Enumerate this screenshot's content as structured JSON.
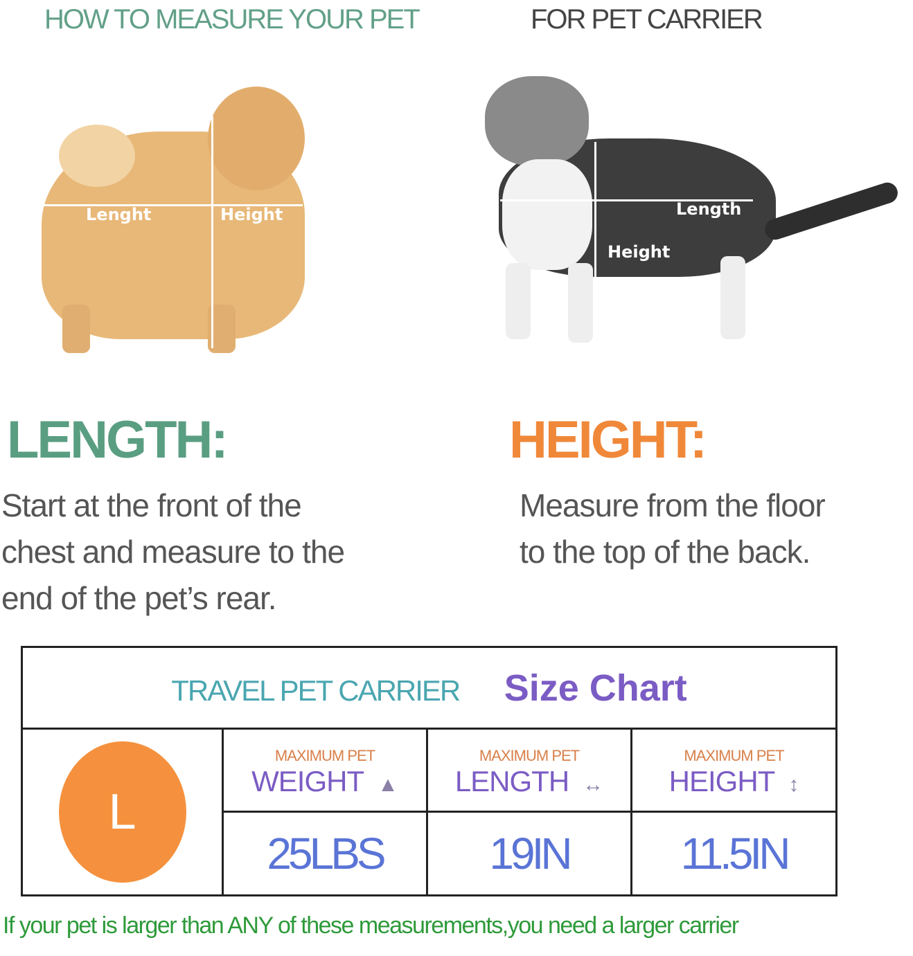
{
  "header": {
    "title": "HOW TO MEASURE YOUR PET",
    "subtitle": "FOR PET CARRIER"
  },
  "dog": {
    "length_label": "Lenght",
    "height_label": "Height"
  },
  "cat": {
    "length_label": "Length",
    "height_label": "Height"
  },
  "length": {
    "title": "LENGTH:",
    "lines": [
      "Start at the front of the",
      "chest and measure to the",
      "end of the pet’s rear."
    ]
  },
  "height": {
    "title": "HEIGHT:",
    "lines": [
      "Measure from the floor",
      "to the top of the back."
    ]
  },
  "chart": {
    "brand": "TRAVEL PET CARRIER",
    "title": "Size Chart",
    "size": "L",
    "columns": [
      {
        "caption": "MAXIMUM PET",
        "label": "WEIGHT",
        "icon": "weight-icon",
        "glyph": "▲",
        "value": "25LBS"
      },
      {
        "caption": "MAXIMUM PET",
        "label": "LENGTH",
        "icon": "horizontal-arrow-icon",
        "glyph": "↔",
        "value": "19IN"
      },
      {
        "caption": "MAXIMUM PET",
        "label": "HEIGHT",
        "icon": "vertical-arrow-icon",
        "glyph": "↕",
        "value": "11.5IN"
      }
    ]
  },
  "footer": "If your pet is larger than ANY of these measurements,you need a larger carrier",
  "colors": {
    "green": "#5a9e82",
    "orange": "#f0883a",
    "purple": "#7b5cc4",
    "blue": "#5a74d6",
    "footer": "#2e9a3a"
  }
}
